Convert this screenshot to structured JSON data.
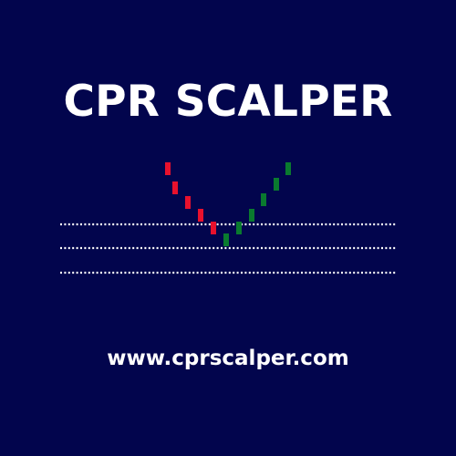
{
  "brand": {
    "title": "CPR SCALPER",
    "website": "www.cprscalper.com"
  },
  "colors": {
    "background": "#02054d",
    "text": "#ffffff",
    "bearish": "#e8112d",
    "bullish": "#0a7a2f",
    "pivot_line": "#ffffff"
  },
  "graphic": {
    "candles": [
      {
        "direction": "bearish"
      },
      {
        "direction": "bearish"
      },
      {
        "direction": "bearish"
      },
      {
        "direction": "bearish"
      },
      {
        "direction": "bearish"
      },
      {
        "direction": "bullish"
      },
      {
        "direction": "bullish"
      },
      {
        "direction": "bullish"
      },
      {
        "direction": "bullish"
      },
      {
        "direction": "bullish"
      },
      {
        "direction": "bullish"
      }
    ],
    "pivot_lines": 3
  }
}
